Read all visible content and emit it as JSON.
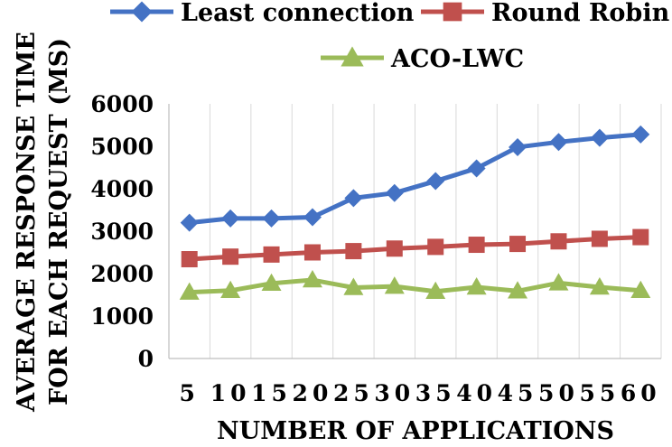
{
  "chart_data": {
    "type": "line",
    "title": "",
    "xlabel": "NUMBER OF APPLICATIONS",
    "ylabel_lines": [
      "AVERAGE RESPONSE TIME",
      "FOR EACH REQUEST (MS)"
    ],
    "categories": [
      "5",
      "10",
      "15",
      "20",
      "25",
      "30",
      "35",
      "40",
      "45",
      "50",
      "55",
      "60"
    ],
    "y_ticks": [
      "0",
      "1000",
      "2000",
      "3000",
      "4000",
      "5000",
      "6000"
    ],
    "ylim": [
      0,
      6000
    ],
    "grid": "vertical",
    "legend": "top",
    "series": [
      {
        "name": "Least connection",
        "color": "#4472C4",
        "marker": "diamond",
        "values": [
          3200,
          3300,
          3300,
          3330,
          3780,
          3900,
          4180,
          4480,
          4980,
          5100,
          5200,
          5280
        ]
      },
      {
        "name": "Round Robin",
        "color": "#C0504D",
        "marker": "square",
        "values": [
          2340,
          2400,
          2450,
          2500,
          2530,
          2590,
          2630,
          2680,
          2700,
          2760,
          2820,
          2860
        ]
      },
      {
        "name": "ACO-LWC",
        "color": "#9BBB59",
        "marker": "triangle",
        "values": [
          1560,
          1600,
          1770,
          1850,
          1670,
          1700,
          1580,
          1680,
          1590,
          1780,
          1680,
          1600
        ]
      }
    ]
  }
}
